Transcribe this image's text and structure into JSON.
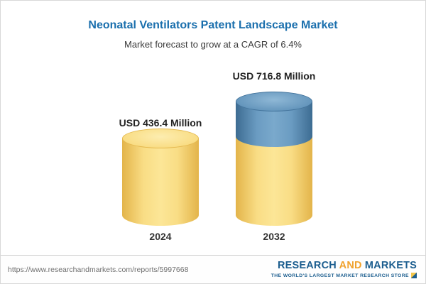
{
  "header": {
    "title": "Neonatal Ventilators Patent Landscape Market",
    "subtitle": "Market forecast to grow at a CAGR of 6.4%"
  },
  "chart_data": {
    "type": "bar",
    "title": "Neonatal Ventilators Patent Landscape Market",
    "subtitle": "Market forecast to grow at a CAGR of 6.4%",
    "categories": [
      "2024",
      "2032"
    ],
    "values": [
      436.4,
      716.8
    ],
    "unit": "USD Million",
    "cagr_percent": 6.4,
    "legend_position": "none",
    "grid": false,
    "bars": [
      {
        "year": "2024",
        "value": 436.4,
        "label": "USD 436.4 Million",
        "color": "#F7D978"
      },
      {
        "year": "2032",
        "value": 716.8,
        "label": "USD 716.8 Million",
        "color_top": "#5E92BA",
        "color_bottom": "#F7D978"
      }
    ],
    "colors": {
      "yellow": "#F7D978",
      "blue": "#5E92BA",
      "title_blue": "#1A6FAD"
    }
  },
  "footer": {
    "url": "https://www.researchandmarkets.com/reports/5997668",
    "logo": {
      "part1": "RESEARCH",
      "part2": "AND",
      "part3": "MARKETS",
      "tagline": "THE WORLD'S LARGEST MARKET RESEARCH STORE"
    }
  }
}
